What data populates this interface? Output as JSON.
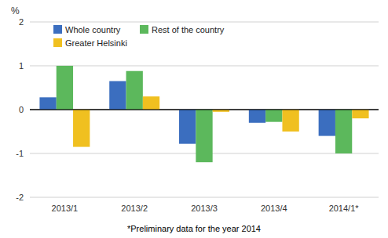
{
  "chart_data": {
    "type": "bar",
    "categories": [
      "2013/1",
      "2013/2",
      "2013/3",
      "2013/4",
      "2014/1*"
    ],
    "series": [
      {
        "name": "Whole country",
        "color": "#3B6EBF",
        "values": [
          0.28,
          0.65,
          -0.78,
          -0.3,
          -0.6
        ]
      },
      {
        "name": "Rest of the country",
        "color": "#5CB85C",
        "values": [
          1.0,
          0.88,
          -1.2,
          -0.28,
          -1.0
        ]
      },
      {
        "name": "Greater Helsinki",
        "color": "#F0C020",
        "values": [
          -0.85,
          0.3,
          -0.05,
          -0.5,
          -0.2
        ]
      }
    ],
    "ylabel": "%",
    "footnote": "*Preliminary data for the year 2014",
    "ylim": [
      -2,
      2
    ],
    "yticks": [
      -2,
      -1,
      0,
      1,
      2
    ],
    "grid": true,
    "legend": "upper left"
  }
}
